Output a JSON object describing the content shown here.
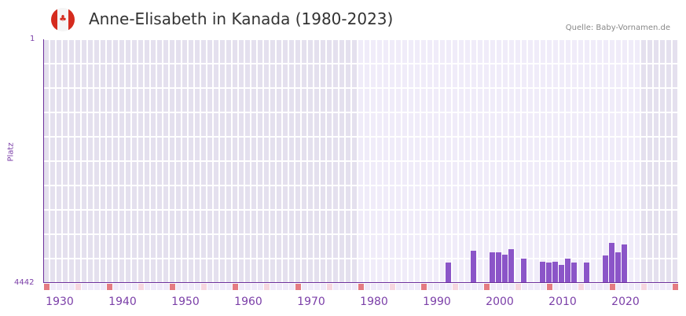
{
  "header": {
    "title": "Anne-Elisabeth in Kanada (1980-2023)",
    "source": "Quelle: Baby-Vornamen.de",
    "flag_icon": "canada-flag-icon"
  },
  "colors": {
    "bar": "#8b55c8",
    "axis": "#6c2e9c",
    "label": "#7b3fa8",
    "bg_outside": "#e4e0ee",
    "bg_inside": "#f0ecf9",
    "decade_mark": "#e47b82",
    "half_decade_mark": "#f6d6df",
    "year_mark": "#efeaf9"
  },
  "chart_data": {
    "type": "bar",
    "title": "Anne-Elisabeth in Kanada (1980-2023)",
    "xlabel": "",
    "ylabel": "Platz",
    "y_inverted": true,
    "ylim": [
      4442,
      1
    ],
    "y_ticks": [
      "1",
      "4442"
    ],
    "xlim": [
      1928,
      2028
    ],
    "x_ticks": [
      1930,
      1940,
      1950,
      1960,
      1970,
      1980,
      1990,
      2000,
      2010,
      2020
    ],
    "highlight_range": [
      1978,
      2022
    ],
    "x": [
      1992,
      1996,
      1999,
      2000,
      2001,
      2002,
      2004,
      2007,
      2008,
      2009,
      2010,
      2011,
      2012,
      2014,
      2017,
      2018,
      2019,
      2020
    ],
    "values": [
      4069,
      3854,
      3883,
      3883,
      3926,
      3826,
      3997,
      4054,
      4069,
      4054,
      4112,
      3997,
      4069,
      4069,
      3940,
      3711,
      3883,
      3740
    ],
    "grid": true,
    "legend": null
  }
}
